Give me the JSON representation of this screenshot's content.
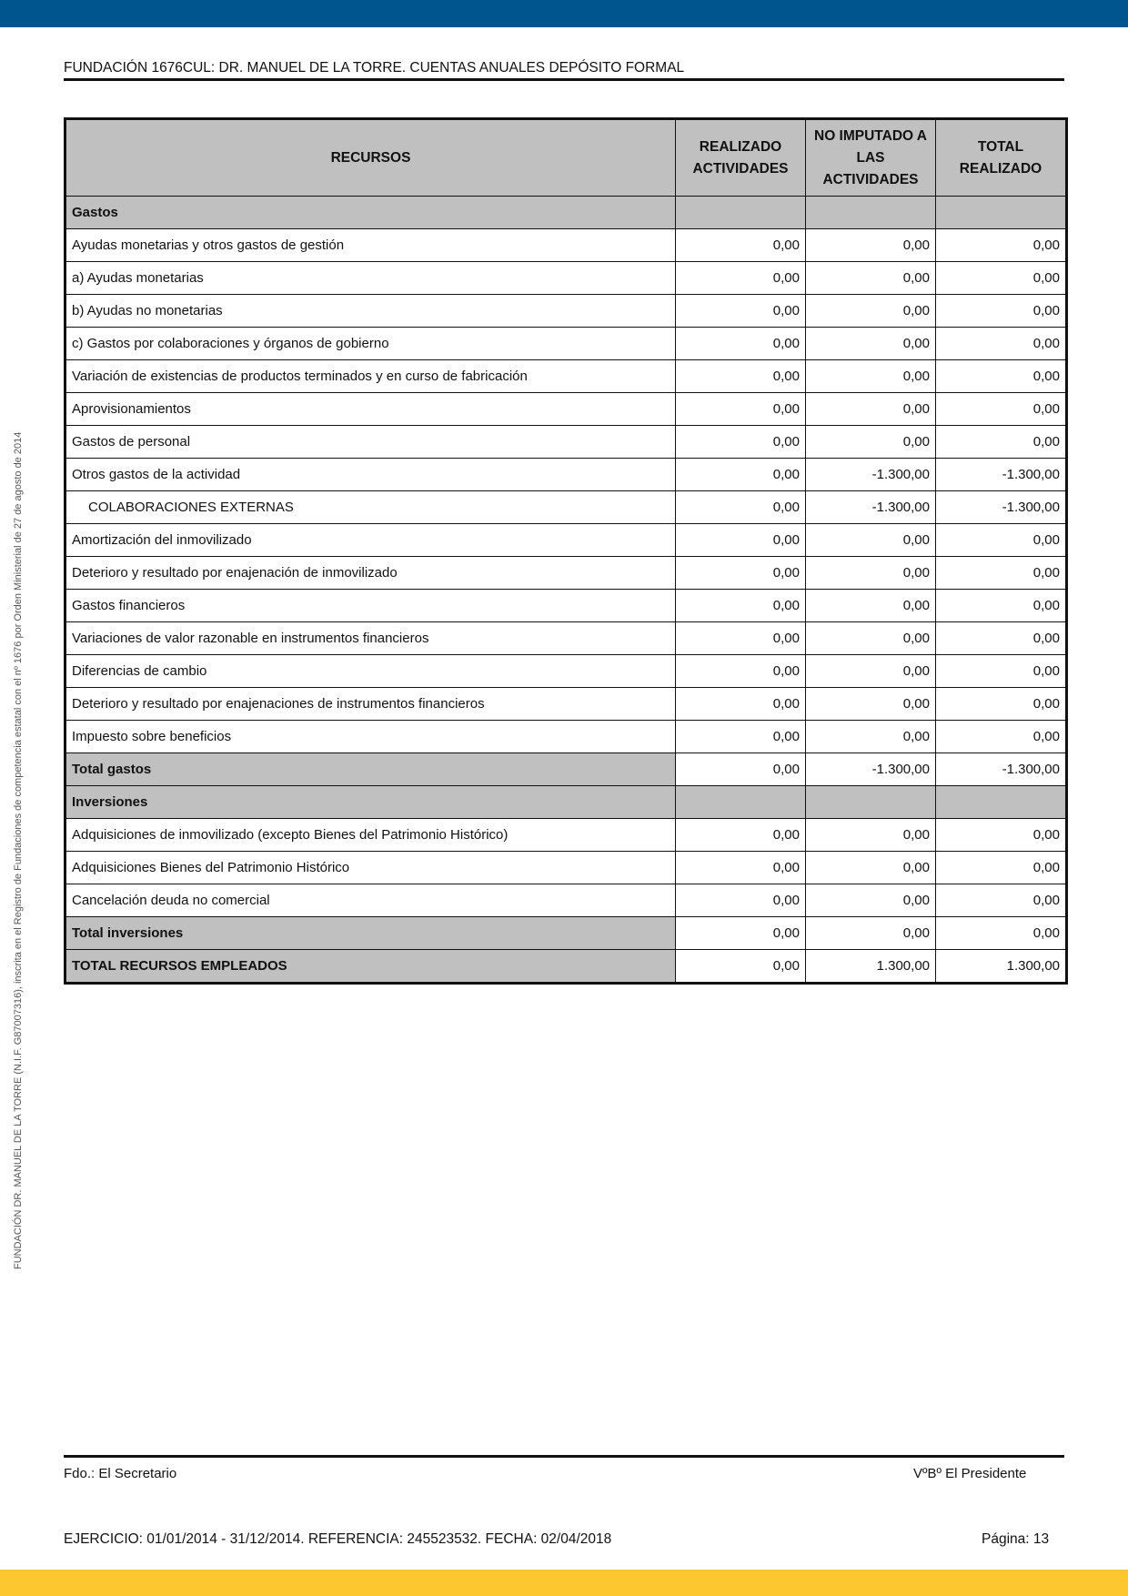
{
  "header": {
    "title": "FUNDACIÓN 1676CUL: DR. MANUEL DE LA TORRE. CUENTAS ANUALES DEPÓSITO FORMAL"
  },
  "side_note": "FUNDACIÓN DR. MANUEL DE LA TORRE (N.I.F. G87007316), inscrita en el Registro de Fundaciones de competencia estatal con el nº 1676 por Orden Ministerial de 27 de agosto de 2014",
  "colors": {
    "top_bar": "#00558f",
    "bottom_bar": "#fdc82f",
    "header_fill": "#c0c0c0"
  },
  "table": {
    "columns": [
      "RECURSOS",
      "REALIZADO ACTIVIDADES",
      "NO IMPUTADO A LAS ACTIVIDADES",
      "TOTAL REALIZADO"
    ],
    "rows": [
      {
        "type": "section",
        "label": "Gastos",
        "values": [
          "",
          "",
          ""
        ]
      },
      {
        "type": "item",
        "label": "Ayudas monetarias y otros gastos de gestión",
        "values": [
          "0,00",
          "0,00",
          "0,00"
        ]
      },
      {
        "type": "item",
        "label": "a) Ayudas monetarias",
        "values": [
          "0,00",
          "0,00",
          "0,00"
        ]
      },
      {
        "type": "item",
        "label": "b) Ayudas no monetarias",
        "values": [
          "0,00",
          "0,00",
          "0,00"
        ]
      },
      {
        "type": "item",
        "label": "c) Gastos por colaboraciones y órganos de gobierno",
        "values": [
          "0,00",
          "0,00",
          "0,00"
        ]
      },
      {
        "type": "item",
        "label": "Variación de existencias de productos terminados y en curso de fabricación",
        "values": [
          "0,00",
          "0,00",
          "0,00"
        ]
      },
      {
        "type": "item",
        "label": "Aprovisionamientos",
        "values": [
          "0,00",
          "0,00",
          "0,00"
        ]
      },
      {
        "type": "item",
        "label": "Gastos de personal",
        "values": [
          "0,00",
          "0,00",
          "0,00"
        ]
      },
      {
        "type": "item",
        "label": "Otros gastos de la actividad",
        "values": [
          "0,00",
          "-1.300,00",
          "-1.300,00"
        ]
      },
      {
        "type": "indent",
        "label": "COLABORACIONES EXTERNAS",
        "values": [
          "0,00",
          "-1.300,00",
          "-1.300,00"
        ]
      },
      {
        "type": "item",
        "label": "Amortización del inmovilizado",
        "values": [
          "0,00",
          "0,00",
          "0,00"
        ]
      },
      {
        "type": "item",
        "label": "Deterioro y resultado por enajenación de inmovilizado",
        "values": [
          "0,00",
          "0,00",
          "0,00"
        ]
      },
      {
        "type": "item",
        "label": "Gastos financieros",
        "values": [
          "0,00",
          "0,00",
          "0,00"
        ]
      },
      {
        "type": "item",
        "label": "Variaciones de valor razonable en instrumentos financieros",
        "values": [
          "0,00",
          "0,00",
          "0,00"
        ]
      },
      {
        "type": "item",
        "label": "Diferencias de cambio",
        "values": [
          "0,00",
          "0,00",
          "0,00"
        ]
      },
      {
        "type": "item",
        "label": "Deterioro y resultado por enajenaciones de instrumentos financieros",
        "values": [
          "0,00",
          "0,00",
          "0,00"
        ]
      },
      {
        "type": "item",
        "label": "Impuesto sobre beneficios",
        "values": [
          "0,00",
          "0,00",
          "0,00"
        ]
      },
      {
        "type": "total",
        "label": "Total gastos",
        "values": [
          "0,00",
          "-1.300,00",
          "-1.300,00"
        ]
      },
      {
        "type": "section",
        "label": "Inversiones",
        "values": [
          "",
          "",
          ""
        ]
      },
      {
        "type": "item",
        "label": "Adquisiciones de inmovilizado (excepto Bienes del Patrimonio Histórico)",
        "values": [
          "0,00",
          "0,00",
          "0,00"
        ]
      },
      {
        "type": "item",
        "label": "Adquisiciones Bienes del Patrimonio Histórico",
        "values": [
          "0,00",
          "0,00",
          "0,00"
        ]
      },
      {
        "type": "item",
        "label": "Cancelación deuda no comercial",
        "values": [
          "0,00",
          "0,00",
          "0,00"
        ]
      },
      {
        "type": "total",
        "label": "Total inversiones",
        "values": [
          "0,00",
          "0,00",
          "0,00"
        ]
      },
      {
        "type": "total",
        "label": "TOTAL RECURSOS EMPLEADOS",
        "values": [
          "0,00",
          "1.300,00",
          "1.300,00"
        ]
      }
    ]
  },
  "signatures": {
    "left": "Fdo.: El Secretario",
    "right": "VºBº El Presidente"
  },
  "footer": {
    "left": "EJERCICIO: 01/01/2014 - 31/12/2014. REFERENCIA: 245523532. FECHA: 02/04/2018",
    "page": "Página: 13"
  }
}
